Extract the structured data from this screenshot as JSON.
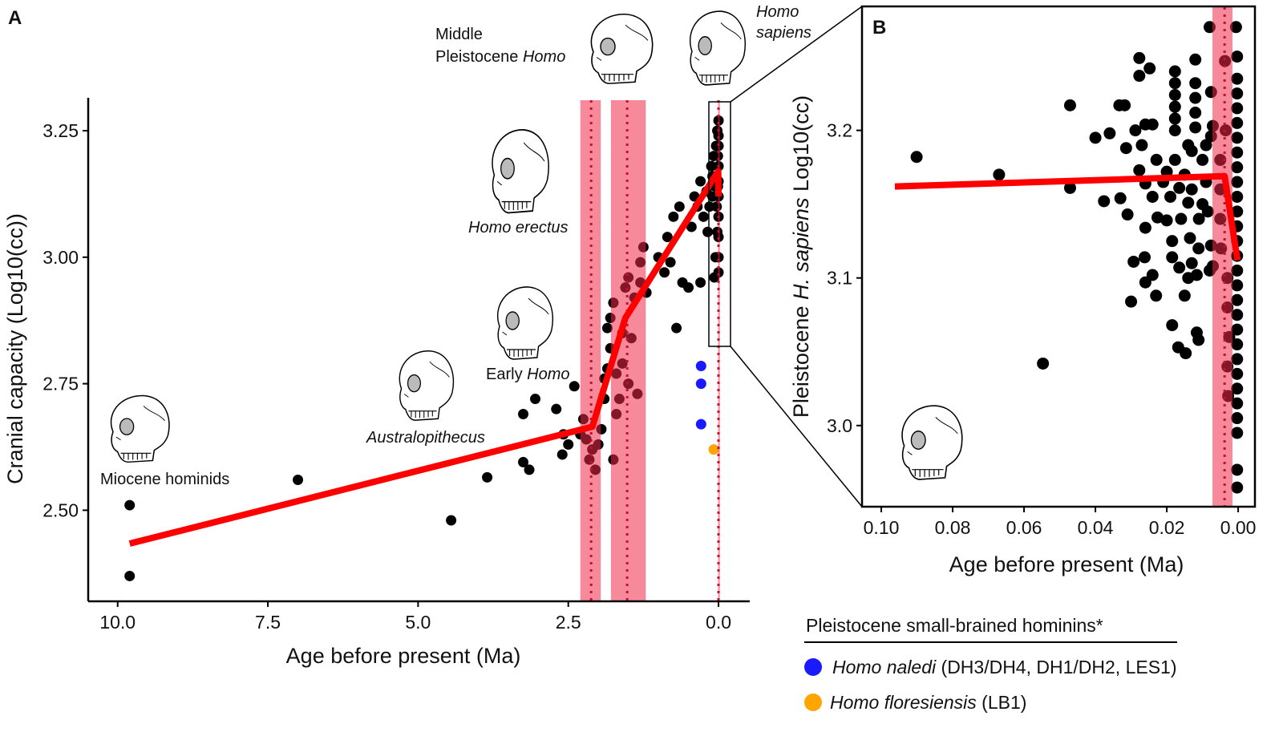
{
  "colors": {
    "points": "#000000",
    "regression": "#ff0000",
    "band": "#ee2a48",
    "dotted": "#c8102e",
    "naledi": "#1a1aff",
    "floresiensis": "#ffa500"
  },
  "chart_data": [
    {
      "panel": "A",
      "type": "scatter",
      "xlabel": "Age before present (Ma)",
      "ylabel": "Cranial capacity (Log10(cc))",
      "xlim": [
        10.49,
        -0.52
      ],
      "ylim": [
        2.32,
        3.315
      ],
      "x_reversed": true,
      "grid": false,
      "xticks": [
        {
          "v": 10,
          "label": "10.0"
        },
        {
          "v": 7.5,
          "label": "7.5"
        },
        {
          "v": 5,
          "label": "5.0"
        },
        {
          "v": 2.5,
          "label": "2.5"
        },
        {
          "v": 0,
          "label": "0.0"
        }
      ],
      "yticks": [
        {
          "v": 2.5,
          "label": "2.50"
        },
        {
          "v": 2.75,
          "label": "2.75"
        },
        {
          "v": 3.0,
          "label": "3.00"
        },
        {
          "v": 3.25,
          "label": "3.25"
        }
      ],
      "points": [
        [
          9.8,
          2.51
        ],
        [
          9.8,
          2.37
        ],
        [
          7.0,
          2.56
        ],
        [
          4.45,
          2.48
        ],
        [
          3.85,
          2.565
        ],
        [
          3.25,
          2.69
        ],
        [
          3.05,
          2.72
        ],
        [
          3.25,
          2.595
        ],
        [
          3.15,
          2.58
        ],
        [
          2.7,
          2.7
        ],
        [
          2.4,
          2.745
        ],
        [
          2.58,
          2.65
        ],
        [
          2.5,
          2.63
        ],
        [
          2.6,
          2.61
        ],
        [
          2.3,
          2.65
        ],
        [
          2.25,
          2.68
        ],
        [
          2.2,
          2.64
        ],
        [
          2.15,
          2.6
        ],
        [
          2.1,
          2.62
        ],
        [
          2.05,
          2.58
        ],
        [
          2.0,
          2.63
        ],
        [
          1.95,
          2.66
        ],
        [
          1.9,
          2.72
        ],
        [
          1.85,
          2.78
        ],
        [
          1.85,
          2.86
        ],
        [
          1.8,
          2.88
        ],
        [
          1.75,
          2.91
        ],
        [
          1.7,
          2.69
        ],
        [
          1.7,
          2.77
        ],
        [
          1.65,
          2.72
        ],
        [
          1.6,
          2.79
        ],
        [
          1.6,
          2.85
        ],
        [
          1.55,
          2.94
        ],
        [
          1.5,
          2.96
        ],
        [
          1.5,
          2.75
        ],
        [
          1.45,
          2.84
        ],
        [
          1.4,
          2.92
        ],
        [
          1.35,
          2.73
        ],
        [
          1.3,
          2.99
        ],
        [
          1.3,
          2.95
        ],
        [
          1.25,
          3.02
        ],
        [
          1.2,
          2.93
        ],
        [
          1.75,
          2.6
        ],
        [
          1.9,
          2.76
        ],
        [
          1.8,
          2.82
        ],
        [
          1.0,
          3.0
        ],
        [
          0.9,
          2.97
        ],
        [
          0.85,
          3.04
        ],
        [
          0.8,
          2.99
        ],
        [
          0.75,
          3.08
        ],
        [
          0.7,
          2.86
        ],
        [
          0.65,
          3.1
        ],
        [
          0.6,
          2.95
        ],
        [
          0.5,
          2.94
        ],
        [
          0.45,
          3.06
        ],
        [
          0.4,
          3.12
        ],
        [
          0.35,
          3.1
        ],
        [
          0.3,
          3.15
        ],
        [
          0.3,
          2.95
        ],
        [
          0.25,
          3.08
        ],
        [
          0.2,
          3.13
        ],
        [
          0.18,
          3.05
        ],
        [
          0.15,
          3.1
        ],
        [
          0.12,
          3.18
        ],
        [
          0.1,
          3.16
        ],
        [
          0.08,
          3.2
        ],
        [
          0.06,
          3.14
        ],
        [
          0.04,
          3.22
        ],
        [
          0.03,
          3.1
        ],
        [
          0.02,
          3.25
        ],
        [
          0.01,
          3.2
        ],
        [
          0.0,
          3.27
        ],
        [
          0.0,
          3.24
        ],
        [
          0.0,
          3.22
        ],
        [
          0.0,
          3.18
        ],
        [
          0.0,
          3.15
        ],
        [
          0.0,
          3.12
        ],
        [
          0.0,
          3.08
        ],
        [
          0.0,
          3.04
        ],
        [
          0.0,
          3.0
        ],
        [
          0.0,
          2.97
        ],
        [
          0.01,
          3.14
        ],
        [
          0.02,
          3.05
        ],
        [
          0.05,
          3.0
        ],
        [
          0.1,
          3.12
        ],
        [
          0.07,
          2.96
        ]
      ],
      "naledi_points": [
        [
          0.29,
          2.785
        ],
        [
          0.29,
          2.75
        ],
        [
          0.29,
          2.67
        ]
      ],
      "floresiensis_points": [
        [
          0.08,
          2.62
        ]
      ],
      "regression_line": [
        [
          9.8,
          2.434
        ],
        [
          2.1,
          2.665
        ],
        [
          1.55,
          2.88
        ],
        [
          0.005,
          3.17
        ],
        [
          0.0,
          3.12
        ]
      ],
      "bands": [
        {
          "from": 2.3,
          "to": 1.96,
          "center": 2.12
        },
        {
          "from": 1.79,
          "to": 1.21,
          "center": 1.52
        },
        {
          "from": 0.006,
          "to": 0.001,
          "center": 0.0
        }
      ],
      "annotations": {
        "miocene": "Miocene hominids",
        "australopithecus": "Australopithecus",
        "early_homo_a": "Early ",
        "early_homo_b": "Homo",
        "homo_erectus": "Homo erectus",
        "middle_a": "Middle",
        "middle_b": "Pleistocene ",
        "middle_c": "Homo",
        "sapiens_a": "Homo",
        "sapiens_b": "sapiens"
      }
    },
    {
      "panel": "B",
      "type": "scatter",
      "xlabel": "Age before present (Ma)",
      "ylabel_parts": [
        "Pleistocene ",
        "H. sapiens",
        " Log10(cc)"
      ],
      "xlim": [
        0.1054,
        -0.0047
      ],
      "ylim": [
        2.945,
        3.284
      ],
      "x_reversed": true,
      "grid": false,
      "xticks": [
        {
          "v": 0.1,
          "label": "0.10"
        },
        {
          "v": 0.08,
          "label": "0.08"
        },
        {
          "v": 0.06,
          "label": "0.06"
        },
        {
          "v": 0.04,
          "label": "0.04"
        },
        {
          "v": 0.02,
          "label": "0.02"
        },
        {
          "v": 0.0,
          "label": "0.00"
        }
      ],
      "yticks": [
        {
          "v": 3.0,
          "label": "3.0"
        },
        {
          "v": 3.1,
          "label": "3.1"
        },
        {
          "v": 3.2,
          "label": "3.2"
        }
      ],
      "points": [
        [
          0.0901,
          3.182
        ],
        [
          0.067,
          3.17
        ],
        [
          0.0547,
          3.042
        ],
        [
          0.0471,
          3.217
        ],
        [
          0.0471,
          3.161
        ],
        [
          0.04,
          3.195
        ],
        [
          0.0376,
          3.152
        ],
        [
          0.036,
          3.198
        ],
        [
          0.0333,
          3.217
        ],
        [
          0.0318,
          3.217
        ],
        [
          0.033,
          3.154
        ],
        [
          0.0314,
          3.188
        ],
        [
          0.031,
          3.143
        ],
        [
          0.03,
          3.084
        ],
        [
          0.0293,
          3.111
        ],
        [
          0.0277,
          3.249
        ],
        [
          0.0277,
          3.237
        ],
        [
          0.0248,
          3.242
        ],
        [
          0.0288,
          3.2
        ],
        [
          0.027,
          3.19
        ],
        [
          0.026,
          3.204
        ],
        [
          0.024,
          3.204
        ],
        [
          0.0277,
          3.173
        ],
        [
          0.026,
          3.164
        ],
        [
          0.024,
          3.155
        ],
        [
          0.026,
          3.134
        ],
        [
          0.0262,
          3.114
        ],
        [
          0.026,
          3.097
        ],
        [
          0.024,
          3.102
        ],
        [
          0.023,
          3.088
        ],
        [
          0.0226,
          3.141
        ],
        [
          0.0229,
          3.18
        ],
        [
          0.02,
          3.172
        ],
        [
          0.02,
          3.139
        ],
        [
          0.0185,
          3.125
        ],
        [
          0.0185,
          3.114
        ],
        [
          0.0185,
          3.068
        ],
        [
          0.0177,
          3.24
        ],
        [
          0.0177,
          3.232
        ],
        [
          0.0177,
          3.224
        ],
        [
          0.0177,
          3.216
        ],
        [
          0.0177,
          3.208
        ],
        [
          0.0177,
          3.2
        ],
        [
          0.0177,
          3.18
        ],
        [
          0.0165,
          3.161
        ],
        [
          0.0165,
          3.107
        ],
        [
          0.0168,
          3.053
        ],
        [
          0.0147,
          3.049
        ],
        [
          0.012,
          3.248
        ],
        [
          0.012,
          3.232
        ],
        [
          0.012,
          3.222
        ],
        [
          0.012,
          3.212
        ],
        [
          0.012,
          3.202
        ],
        [
          0.013,
          3.186
        ],
        [
          0.014,
          3.151
        ],
        [
          0.0135,
          3.127
        ],
        [
          0.015,
          3.088
        ],
        [
          0.0116,
          3.063
        ],
        [
          0.0111,
          3.058
        ],
        [
          0.0111,
          3.12
        ],
        [
          0.0116,
          3.102
        ],
        [
          0.008,
          3.27
        ],
        [
          0.0076,
          3.226
        ],
        [
          0.0071,
          3.203
        ],
        [
          0.0076,
          3.196
        ],
        [
          0.0076,
          3.122
        ],
        [
          0.0071,
          3.108
        ],
        [
          0.015,
          3.17
        ],
        [
          0.014,
          3.19
        ],
        [
          0.013,
          3.16
        ],
        [
          0.01,
          3.18
        ],
        [
          0.01,
          3.15
        ],
        [
          0.009,
          3.165
        ],
        [
          0.011,
          3.14
        ],
        [
          0.013,
          3.11
        ],
        [
          0.014,
          3.1
        ],
        [
          0.016,
          3.14
        ],
        [
          0.019,
          3.155
        ],
        [
          0.021,
          3.165
        ],
        [
          0.009,
          3.19
        ],
        [
          0.0085,
          3.145
        ],
        [
          0.008,
          3.105
        ],
        [
          0.005,
          3.18
        ],
        [
          0.005,
          3.16
        ],
        [
          0.005,
          3.14
        ],
        [
          0.0048,
          3.12
        ],
        [
          0.0037,
          3.247
        ],
        [
          0.0035,
          3.2
        ],
        [
          0.003,
          3.1
        ],
        [
          0.003,
          3.08
        ],
        [
          0.0025,
          3.06
        ],
        [
          0.003,
          3.04
        ],
        [
          0.0028,
          3.02
        ],
        [
          0.0006,
          3.27
        ],
        [
          0.0003,
          3.25
        ],
        [
          0.0003,
          3.235
        ],
        [
          0.0003,
          3.225
        ],
        [
          0.0003,
          3.215
        ],
        [
          0.0003,
          3.205
        ],
        [
          0.0003,
          3.195
        ],
        [
          0.0003,
          3.185
        ],
        [
          0.0003,
          3.175
        ],
        [
          0.0003,
          3.165
        ],
        [
          0.0003,
          3.155
        ],
        [
          0.0003,
          3.145
        ],
        [
          0.0003,
          3.135
        ],
        [
          0.0003,
          3.125
        ],
        [
          0.0003,
          3.115
        ],
        [
          0.0003,
          3.105
        ],
        [
          0.0003,
          3.095
        ],
        [
          0.0003,
          3.085
        ],
        [
          0.0003,
          3.075
        ],
        [
          0.0003,
          3.065
        ],
        [
          0.0003,
          3.055
        ],
        [
          0.0003,
          3.045
        ],
        [
          0.0003,
          3.035
        ],
        [
          0.0003,
          3.025
        ],
        [
          0.0003,
          3.015
        ],
        [
          0.0003,
          3.005
        ],
        [
          0.0003,
          2.995
        ],
        [
          0.0003,
          2.97
        ],
        [
          0.0003,
          2.958
        ]
      ],
      "regression_line": [
        [
          0.0962,
          3.162
        ],
        [
          0.0038,
          3.169
        ],
        [
          0.0002,
          3.112
        ]
      ],
      "bands": [
        {
          "from": 0.0072,
          "to": 0.0016,
          "center": 0.0038
        }
      ]
    }
  ],
  "panel_labels": {
    "a": "A",
    "b": "B"
  },
  "legend": {
    "title": "Pleistocene small-brained hominins*",
    "items": [
      {
        "species": "Homo naledi",
        "detail": " (DH3/DH4, DH1/DH2, LES1)",
        "color": "#1a1aff"
      },
      {
        "species": "Homo floresiensis",
        "detail": " (LB1)",
        "color": "#ffa500"
      }
    ]
  },
  "icons": [
    "skull-miocene",
    "skull-australopithecus",
    "skull-early-homo",
    "skull-homo-erectus",
    "skull-middle-pleistocene-homo",
    "skull-homo-sapiens"
  ]
}
